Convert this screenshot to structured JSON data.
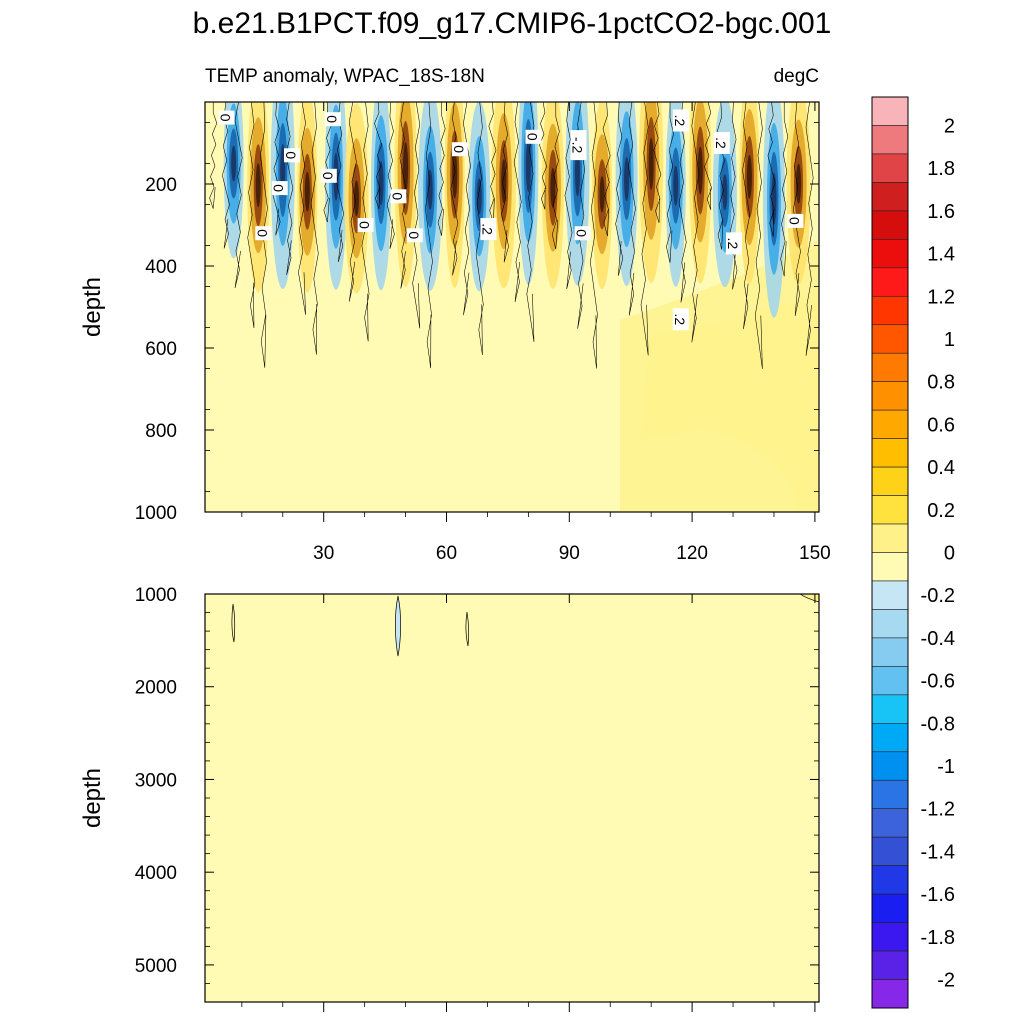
{
  "title": "b.e21.B1PCT.f09_g17.CMIP6-1pctCO2-bgc.001",
  "chart_data": {
    "type": "heatmap",
    "colorbar": {
      "levels": [
        "2",
        "1.8",
        "1.6",
        "1.4",
        "1.2",
        "1",
        "0.8",
        "0.6",
        "0.4",
        "0.2",
        "0",
        "-0.2",
        "-0.4",
        "-0.6",
        "-0.8",
        "-1",
        "-1.2",
        "-1.4",
        "-1.6",
        "-1.8",
        "-2"
      ],
      "colors": [
        "#f8b4b8",
        "#ee7a7e",
        "#e04446",
        "#cf1f1f",
        "#d50d0d",
        "#ec0d0d",
        "#ff1a1a",
        "#ff3600",
        "#ff5600",
        "#ff7a00",
        "#ff9000",
        "#ffa800",
        "#ffbe00",
        "#ffd21a",
        "#ffe23e",
        "#fff18a",
        "#fffab4",
        "#c6e5f5",
        "#a7d9f0",
        "#86ccf0",
        "#62c1f0",
        "#18c3f5",
        "#00a9f5",
        "#0090f0",
        "#2a74e6",
        "#3c62dc",
        "#3451d6",
        "#2038e6",
        "#1a1ef0",
        "#3c18f0",
        "#5a22e6",
        "#8728e8"
      ]
    },
    "panels": [
      {
        "name": "upper",
        "subtitle_left": "TEMP anomaly, WPAC_18S-18N",
        "subtitle_right": "degC",
        "ylabel": "depth",
        "x_range": [
          1,
          151
        ],
        "y_range": [
          0,
          1000
        ],
        "y_ticks": [
          "200",
          "400",
          "600",
          "800",
          "1000"
        ],
        "x_ticks": [
          "30",
          "60",
          "90",
          "120",
          "150"
        ],
        "contour_labels": [
          {
            "text": "0",
            "x": 6,
            "y": 38
          },
          {
            "text": "0",
            "x": 32,
            "y": 42
          },
          {
            "text": "0",
            "x": 22,
            "y": 130
          },
          {
            "text": "0",
            "x": 19,
            "y": 210
          },
          {
            "text": "0",
            "x": 31,
            "y": 180
          },
          {
            "text": "0",
            "x": 48,
            "y": 230
          },
          {
            "text": "0",
            "x": 63,
            "y": 115
          },
          {
            "text": "0",
            "x": 81,
            "y": 85
          },
          {
            "text": "-.2",
            "x": 92,
            "y": 105
          },
          {
            "text": ".2",
            "x": 117,
            "y": 45
          },
          {
            "text": ".2",
            "x": 127,
            "y": 100
          },
          {
            "text": "0",
            "x": 15,
            "y": 320
          },
          {
            "text": "0",
            "x": 40,
            "y": 300
          },
          {
            "text": "0",
            "x": 52,
            "y": 325
          },
          {
            "text": ".2",
            "x": 70,
            "y": 310
          },
          {
            "text": "0",
            "x": 93,
            "y": 320
          },
          {
            "text": ".2",
            "x": 130,
            "y": 345
          },
          {
            "text": "0",
            "x": 145,
            "y": 290
          },
          {
            "text": ".2",
            "x": 117,
            "y": 530
          }
        ]
      },
      {
        "name": "lower",
        "ylabel": "depth",
        "x_range": [
          1,
          151
        ],
        "y_range": [
          1000,
          5400
        ],
        "y_ticks": [
          "1000",
          "2000",
          "3000",
          "4000",
          "5000"
        ]
      }
    ]
  }
}
